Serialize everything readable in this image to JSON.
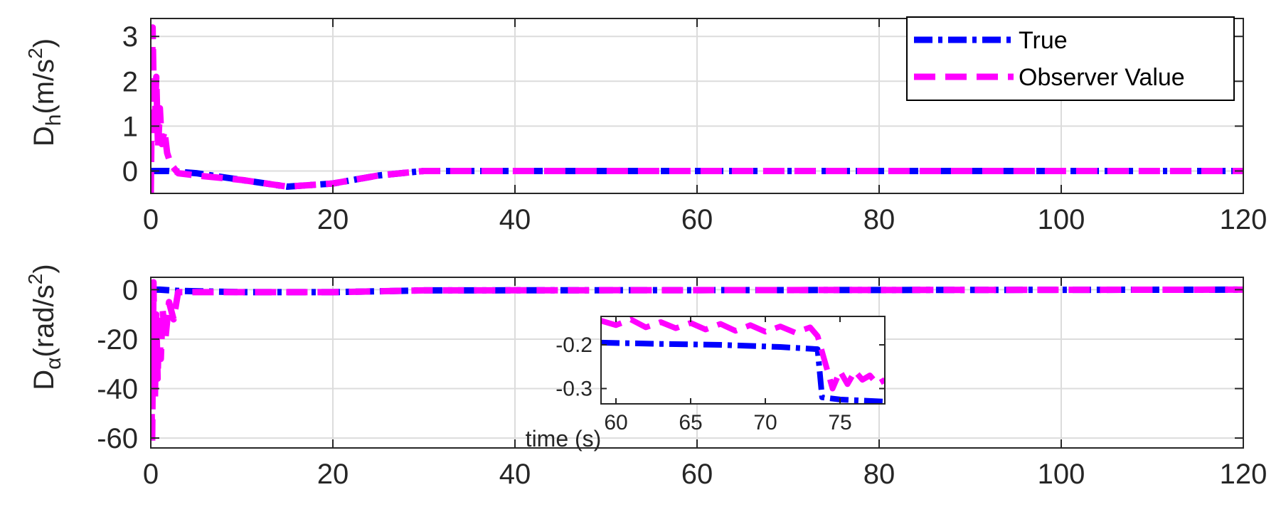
{
  "chart_data": [
    {
      "type": "line",
      "ylabel": {
        "main": "D",
        "sub": "h",
        "unit": "(m/s",
        "sup": "2",
        "close": ")"
      },
      "xlim": [
        0,
        120
      ],
      "ylim": [
        -0.5,
        3.4
      ],
      "xticks": [
        0,
        20,
        40,
        60,
        80,
        100,
        120
      ],
      "xtick_labels": [
        "0",
        "20",
        "40",
        "60",
        "80",
        "100",
        "120"
      ],
      "yticks": [
        0,
        1,
        2,
        3
      ],
      "ytick_labels": [
        "0",
        "1",
        "2",
        "3"
      ],
      "grid": true,
      "legend": {
        "position": "top-right"
      },
      "series": [
        {
          "name": "True",
          "color": "#0000ff",
          "style": "dashdot",
          "x": [
            0,
            2,
            5,
            10,
            15,
            20,
            25,
            29,
            30,
            120
          ],
          "y": [
            0,
            0,
            -0.05,
            -0.2,
            -0.35,
            -0.28,
            -0.1,
            -0.02,
            0,
            0
          ]
        },
        {
          "name": "Observer Value",
          "color": "#ff00ff",
          "style": "dashed",
          "x": [
            0,
            0.2,
            0.4,
            0.6,
            0.8,
            1.0,
            1.2,
            1.5,
            1.8,
            2.2,
            3,
            5,
            10,
            15,
            20,
            25,
            29,
            30,
            120
          ],
          "y": [
            -0.5,
            3.2,
            0.8,
            2.1,
            0.5,
            1.4,
            0.6,
            0.9,
            0.4,
            0.15,
            -0.05,
            -0.1,
            -0.2,
            -0.35,
            -0.28,
            -0.1,
            -0.02,
            0,
            0
          ]
        }
      ]
    },
    {
      "type": "line",
      "ylabel": {
        "main": "D",
        "sub": "α",
        "unit": "(rad/s",
        "sup": "2",
        "close": ")"
      },
      "xlabel": "time (s)",
      "xlim": [
        0,
        120
      ],
      "ylim": [
        -64,
        5
      ],
      "xticks": [
        0,
        20,
        40,
        60,
        80,
        100,
        120
      ],
      "xtick_labels": [
        "0",
        "20",
        "40",
        "60",
        "80",
        "100",
        "120"
      ],
      "yticks": [
        -60,
        -40,
        -20,
        0
      ],
      "ytick_labels": [
        "-60",
        "-40",
        "-20",
        "0"
      ],
      "grid": true,
      "series": [
        {
          "name": "True",
          "color": "#0000ff",
          "style": "dashdot",
          "x": [
            0,
            1,
            3,
            10,
            20,
            30,
            120
          ],
          "y": [
            0,
            0,
            -0.5,
            -1,
            -1,
            -0.3,
            0
          ]
        },
        {
          "name": "Observer Value",
          "color": "#ff00ff",
          "style": "dashed",
          "x": [
            0,
            0.15,
            0.3,
            0.45,
            0.6,
            0.75,
            0.9,
            1.1,
            1.3,
            1.6,
            2.0,
            2.5,
            3,
            10,
            20,
            30,
            120
          ],
          "y": [
            -25,
            -62,
            3,
            -45,
            -10,
            -36,
            -15,
            -28,
            -8,
            -20,
            -5,
            -12,
            -1,
            -1,
            -1,
            -0.3,
            0
          ]
        }
      ]
    },
    {
      "type": "line",
      "inset": true,
      "xlim": [
        59,
        78
      ],
      "ylim": [
        -0.335,
        -0.135
      ],
      "xticks": [
        60,
        65,
        70,
        75
      ],
      "xtick_labels": [
        "60",
        "65",
        "70",
        "75"
      ],
      "yticks": [
        -0.3,
        -0.2
      ],
      "ytick_labels": [
        "-0.3",
        "-0.2"
      ],
      "grid": false,
      "series": [
        {
          "name": "True",
          "color": "#0000ff",
          "style": "dashdot",
          "x": [
            59,
            63,
            67,
            71,
            73.5,
            73.8,
            75,
            78
          ],
          "y": [
            -0.195,
            -0.198,
            -0.2,
            -0.205,
            -0.21,
            -0.32,
            -0.325,
            -0.33
          ]
        },
        {
          "name": "Observer Value",
          "color": "#ff00ff",
          "style": "dashed",
          "x": [
            59,
            60,
            61,
            62,
            63,
            64,
            65,
            66,
            67,
            68,
            69,
            70,
            71,
            72,
            73,
            73.5,
            74,
            74.5,
            75,
            75.5,
            76,
            76.5,
            77,
            77.5,
            78
          ],
          "y": [
            -0.145,
            -0.155,
            -0.142,
            -0.16,
            -0.148,
            -0.162,
            -0.15,
            -0.165,
            -0.152,
            -0.168,
            -0.155,
            -0.17,
            -0.158,
            -0.172,
            -0.16,
            -0.18,
            -0.24,
            -0.3,
            -0.26,
            -0.29,
            -0.26,
            -0.28,
            -0.27,
            -0.29,
            -0.28
          ]
        }
      ]
    }
  ]
}
